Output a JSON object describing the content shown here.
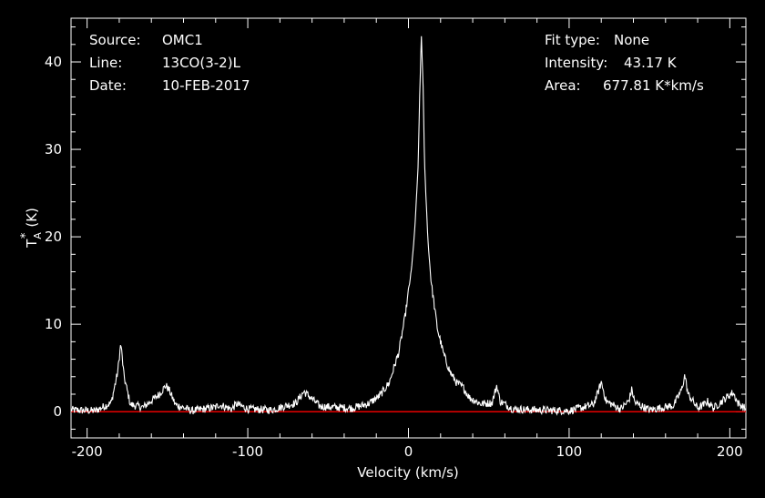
{
  "header": {
    "source_label": "Source:",
    "source_value": "OMC1",
    "line_label": "Line:",
    "line_value": "13CO(3-2)L",
    "date_label": "Date:",
    "date_value": "10-FEB-2017",
    "fit_label": "Fit type:",
    "fit_value": "None",
    "intensity_label": "Intensity:",
    "intensity_value": "43.17 K",
    "area_label": "Area:",
    "area_value": "677.81 K*km/s"
  },
  "colors": {
    "background": "#000000",
    "foreground": "#ffffff",
    "baseline": "#ff0000"
  },
  "chart_data": {
    "type": "line",
    "title": "",
    "xlabel": "Velocity (km/s)",
    "ylabel_main": "T",
    "ylabel_sub": "A",
    "ylabel_sup": "*",
    "ylabel_unit": "(K)",
    "xlim": [
      -210,
      210
    ],
    "ylim": [
      -3,
      45
    ],
    "xticks": [
      -200,
      -100,
      0,
      100,
      200
    ],
    "xtick_labels": [
      "-200",
      "-100",
      "0",
      "100",
      "200"
    ],
    "yticks": [
      0,
      10,
      20,
      30,
      40
    ],
    "ytick_labels": [
      "0",
      "10",
      "20",
      "30",
      "40"
    ],
    "baseline_y": 0,
    "grid": false,
    "series": [
      {
        "x": [
          -210,
          -195,
          -185,
          -181,
          -179,
          -177,
          -173,
          -165,
          -155,
          -151,
          -149,
          -145,
          -135,
          -120,
          -118,
          -110,
          -107,
          -100,
          -85,
          -70,
          -65,
          -62,
          -55,
          -45,
          -35,
          -25,
          -18,
          -12,
          -6,
          -2,
          2,
          4,
          6,
          7,
          8,
          9,
          10,
          12,
          14,
          18,
          22,
          26,
          30,
          34,
          38,
          45,
          52,
          55,
          57,
          65,
          80,
          100,
          115,
          118,
          120,
          123,
          132,
          137,
          139,
          141,
          150,
          165,
          170,
          172,
          174,
          180,
          184,
          186,
          190,
          197,
          202,
          205,
          210
        ],
        "y": [
          0.2,
          0.1,
          1.0,
          4.5,
          7.8,
          4.0,
          0.8,
          0.5,
          2.0,
          3.0,
          2.5,
          0.8,
          0.1,
          0.5,
          0.8,
          0.3,
          0.9,
          0.3,
          0.2,
          1.0,
          2.3,
          1.8,
          0.6,
          0.5,
          0.4,
          0.9,
          1.8,
          3.3,
          6.8,
          11.0,
          16.5,
          21.0,
          28.0,
          36.0,
          43.2,
          38.0,
          28.5,
          20.0,
          15.0,
          9.5,
          6.5,
          4.5,
          3.3,
          2.8,
          1.6,
          0.9,
          1.0,
          3.0,
          1.2,
          0.3,
          0.2,
          0.1,
          0.8,
          2.2,
          3.4,
          1.2,
          0.3,
          1.2,
          2.5,
          1.0,
          0.2,
          0.7,
          2.5,
          4.2,
          2.0,
          0.4,
          0.8,
          1.2,
          0.4,
          1.5,
          2.2,
          1.0,
          0.3
        ]
      }
    ]
  }
}
